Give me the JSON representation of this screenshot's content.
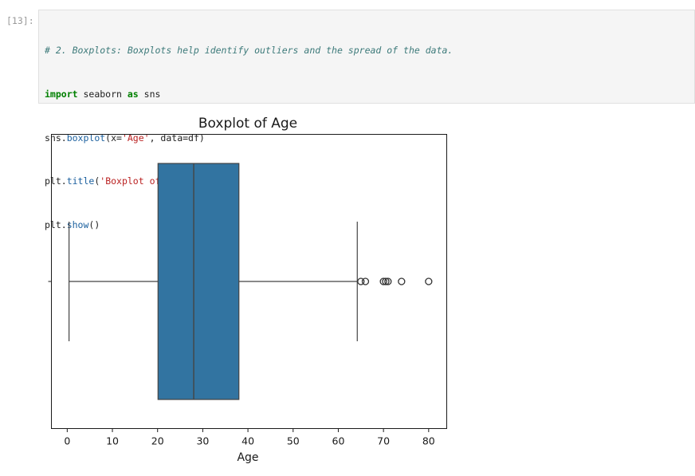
{
  "cell": {
    "prompt": "[13]:",
    "code": {
      "line1": "# 2. Boxplots: Boxplots help identify outliers and the spread of the data.",
      "line2_kw1": "import",
      "line2_mid": " seaborn ",
      "line2_kw2": "as",
      "line2_end": " sns",
      "line3_obj": "sns.",
      "line3_fn": "boxplot",
      "line3_open": "(x=",
      "line3_str": "'Age'",
      "line3_rest": ", data=df)",
      "line4_obj": "plt.",
      "line4_fn": "title",
      "line4_open": "(",
      "line4_str": "'Boxplot of Age'",
      "line4_close": ")",
      "line5_obj": "plt.",
      "line5_fn": "show",
      "line5_rest": "()"
    }
  },
  "chart_data": {
    "type": "boxplot",
    "title": "Boxplot of Age",
    "xlabel": "Age",
    "xlim": [
      -3.5,
      84
    ],
    "xticks": [
      0,
      10,
      20,
      30,
      40,
      50,
      60,
      70,
      80
    ],
    "xtick_labels": [
      "0",
      "10",
      "20",
      "30",
      "40",
      "50",
      "60",
      "70",
      "80"
    ],
    "box": {
      "whisker_low": 0.4,
      "q1": 20.1,
      "median": 28,
      "q3": 38,
      "whisker_high": 64.2
    },
    "outliers": [
      65,
      66,
      70,
      70.5,
      71,
      74,
      80
    ],
    "box_color": "#3274a1",
    "line_color": "#444444"
  }
}
